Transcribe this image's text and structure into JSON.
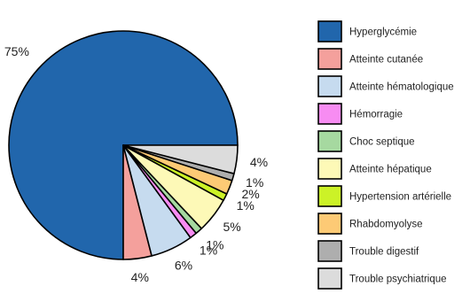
{
  "chart_data": {
    "type": "pie",
    "title": "",
    "legend_position": "right",
    "slices": [
      {
        "label": "Hyperglycémie",
        "value": 75,
        "display": "75%",
        "color": "#2166ac"
      },
      {
        "label": "Atteinte cutanée",
        "value": 4,
        "display": "4%",
        "color": "#f4a09c"
      },
      {
        "label": "Atteinte hématologique",
        "value": 6,
        "display": "6%",
        "color": "#c6dbef"
      },
      {
        "label": "Hémorragie",
        "value": 1,
        "display": "1%",
        "color": "#f78cf2"
      },
      {
        "label": "Choc septique",
        "value": 1,
        "display": "1%",
        "color": "#a6d9a0"
      },
      {
        "label": "Atteinte hépatique",
        "value": 5,
        "display": "5%",
        "color": "#fdf9b7"
      },
      {
        "label": "Hypertension artérielle",
        "value": 1,
        "display": "1%",
        "color": "#ccf227"
      },
      {
        "label": "Rhabdomyolyse",
        "value": 2,
        "display": "2%",
        "color": "#fdca75"
      },
      {
        "label": "Trouble digestif",
        "value": 1,
        "display": "1%",
        "color": "#aeaeae"
      },
      {
        "label": "Trouble psychiatrique",
        "value": 4,
        "display": "4%",
        "color": "#dcdcdc"
      }
    ]
  }
}
